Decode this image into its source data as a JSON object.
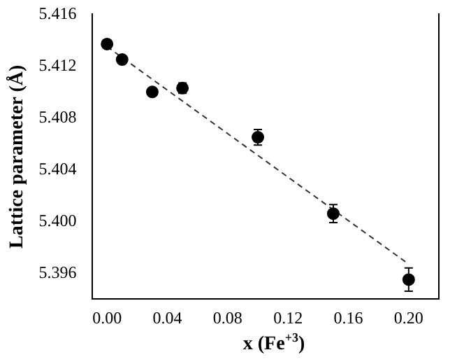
{
  "chart_data": {
    "type": "scatter",
    "xlabel": "x (Fe$^{+3}$)",
    "ylabel": "Lattice parameter (Å)",
    "xlim": [
      -0.01,
      0.22
    ],
    "ylim": [
      5.394,
      5.416
    ],
    "xticks": [
      {
        "value": 0,
        "label": "0.00"
      },
      {
        "value": 0.04,
        "label": "0.04"
      },
      {
        "value": 0.08,
        "label": "0.08"
      },
      {
        "value": 0.12,
        "label": "0.12"
      },
      {
        "value": 0.16,
        "label": "0.16"
      },
      {
        "value": 0.2,
        "label": "0.20"
      }
    ],
    "yticks": [
      {
        "value": 5.396,
        "label": "5.396"
      },
      {
        "value": 5.4,
        "label": "5.400"
      },
      {
        "value": 5.404,
        "label": "5.404"
      },
      {
        "value": 5.408,
        "label": "5.408"
      },
      {
        "value": 5.412,
        "label": "5.412"
      },
      {
        "value": 5.416,
        "label": "5.416"
      }
    ],
    "grid": false,
    "legend": false,
    "marker": "circle",
    "series": [
      {
        "color": "#000000",
        "x": [
          0,
          0.01,
          0.03,
          0.05,
          0.1,
          0.15,
          0.2
        ],
        "values": [
          5.4137,
          5.4125,
          5.41,
          5.4103,
          5.4065,
          5.4006,
          5.3955
        ],
        "errors": [
          null,
          null,
          null,
          0.0004,
          0.0006,
          0.0007,
          0.0009
        ]
      },
      {
        "type": "line",
        "color": "#333333",
        "line_style": "dashed",
        "marker": "none",
        "x": [
          0,
          0.2
        ],
        "values": [
          5.4135,
          5.3967
        ]
      }
    ]
  }
}
